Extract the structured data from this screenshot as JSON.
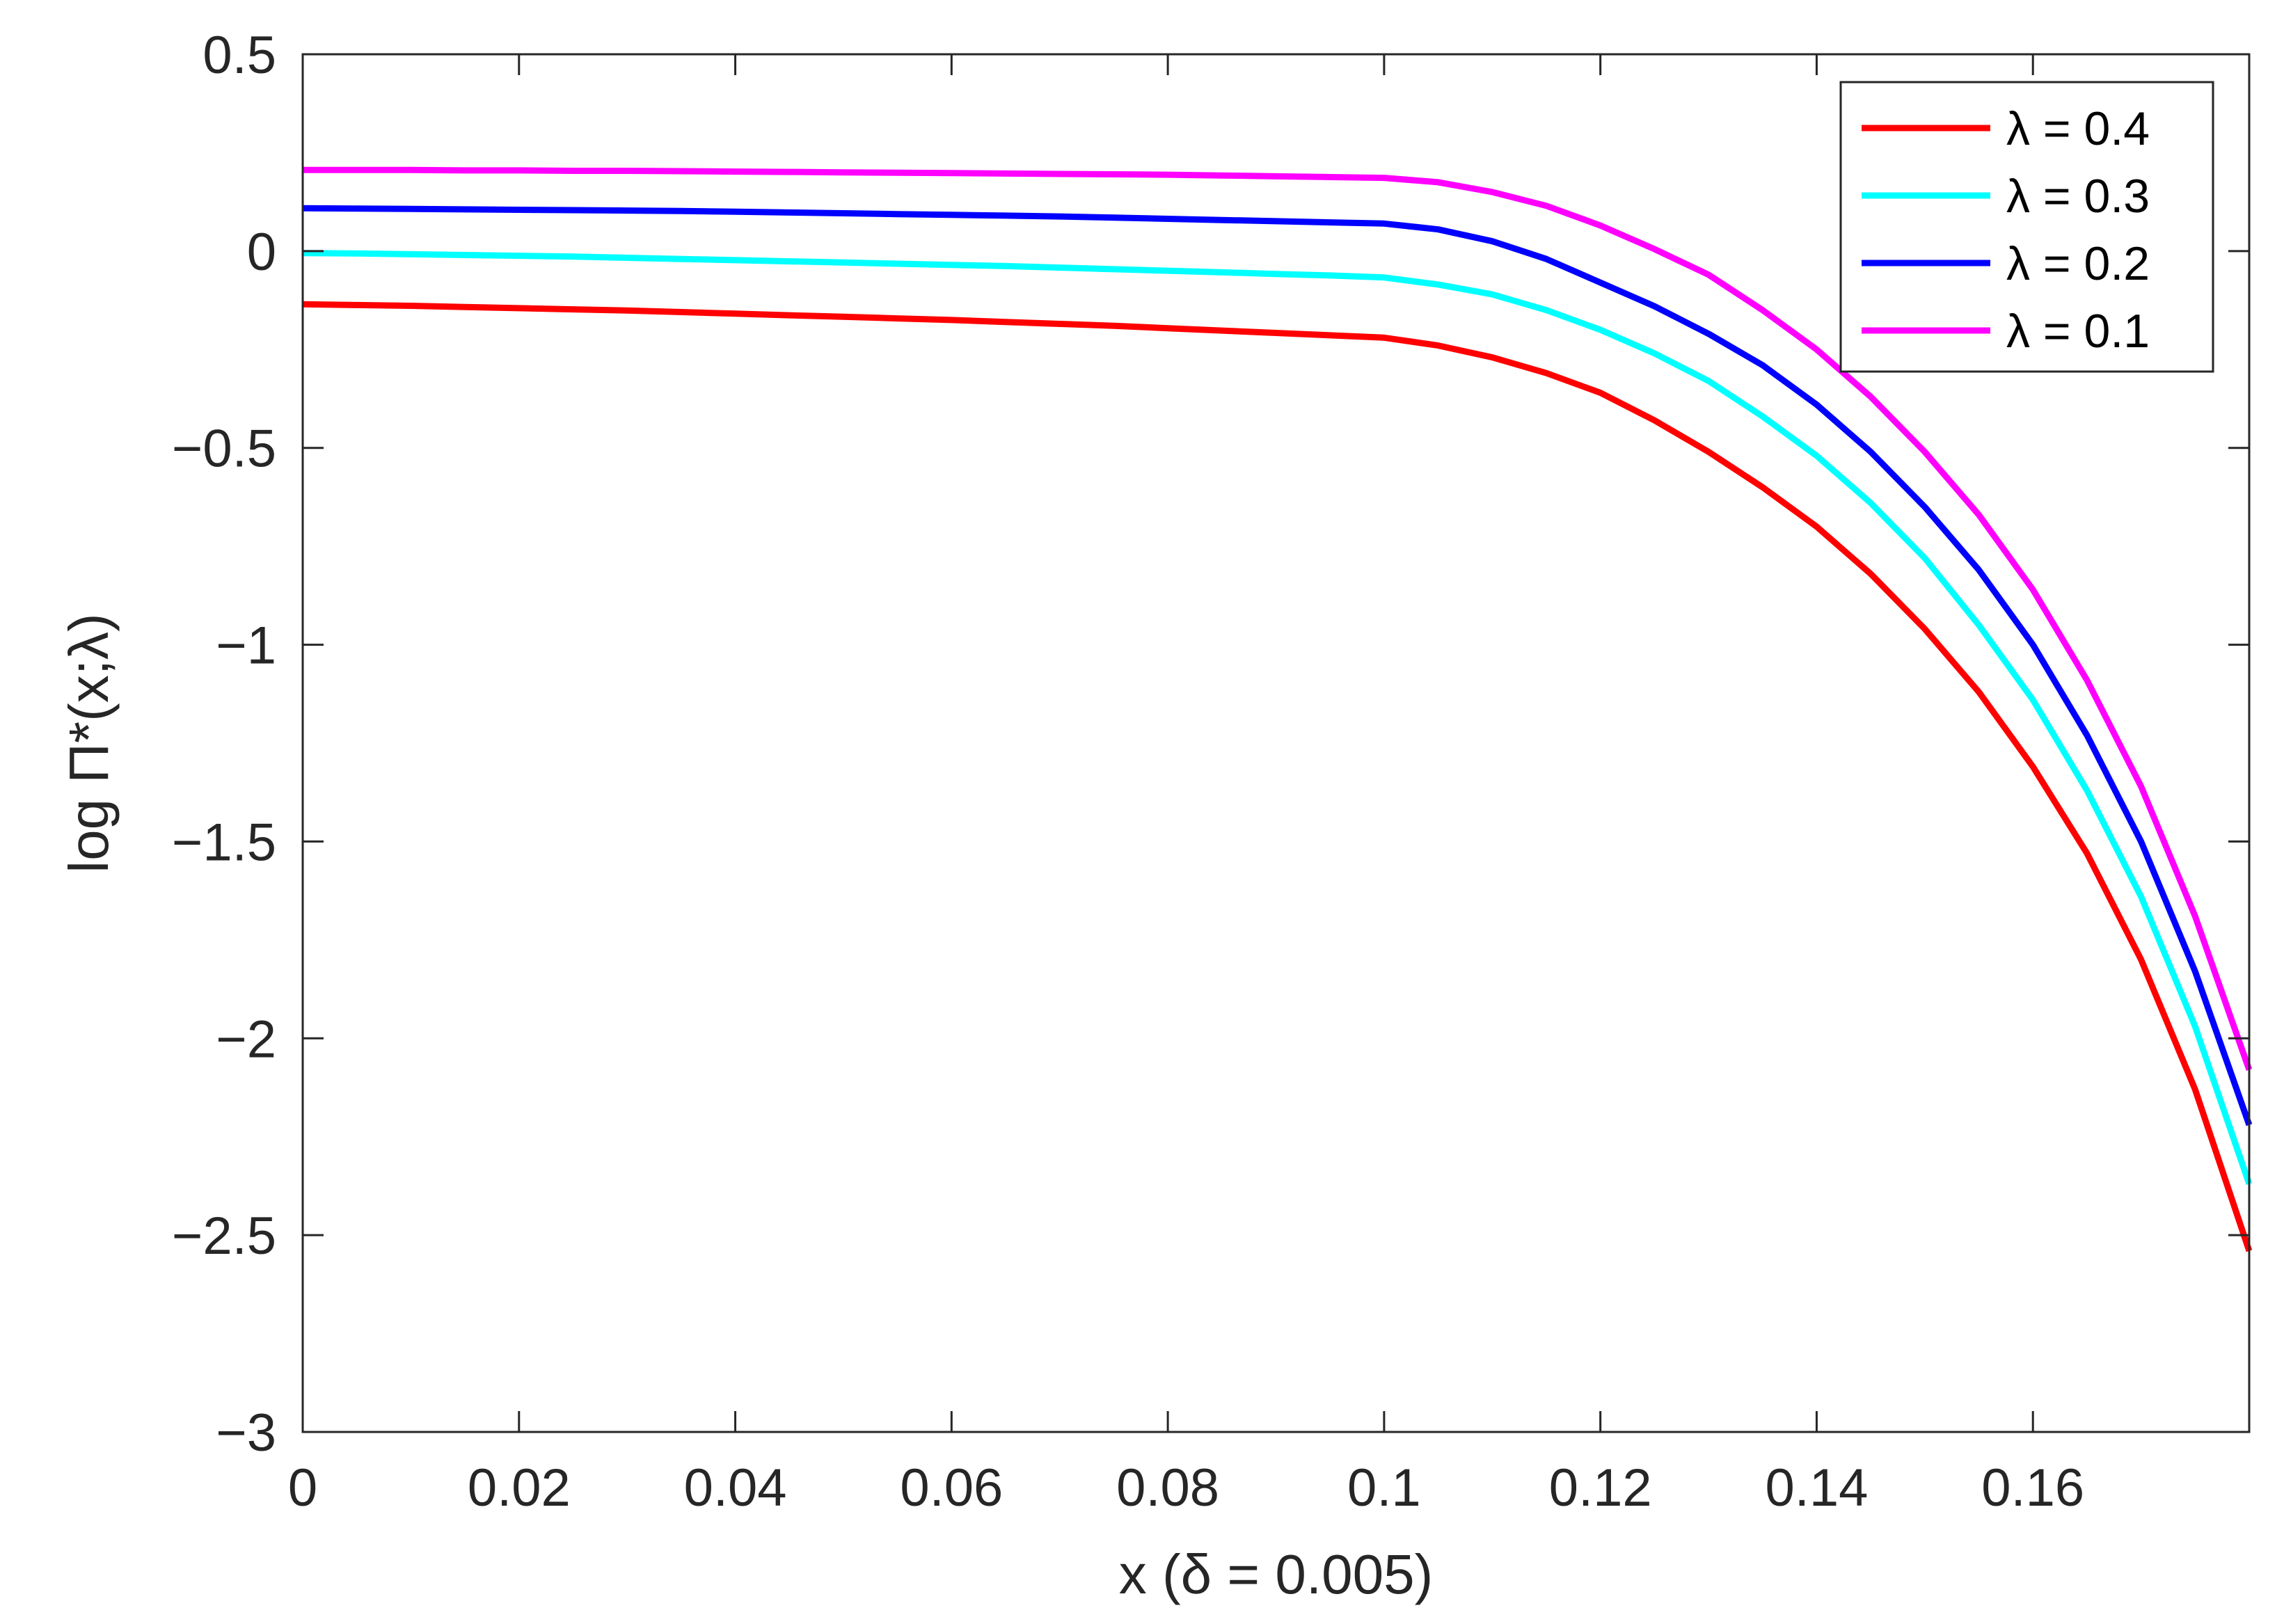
{
  "chart_data": {
    "type": "line",
    "title": "",
    "xlabel": "x (δ = 0.005)",
    "ylabel": "log Π*(x;λ)",
    "xlim": [
      0,
      0.18
    ],
    "ylim": [
      -3,
      0.5
    ],
    "xticks": [
      0,
      0.02,
      0.04,
      0.06,
      0.08,
      0.1,
      0.12,
      0.14,
      0.16
    ],
    "xtick_labels": [
      "0",
      "0.02",
      "0.04",
      "0.06",
      "0.08",
      "0.1",
      "0.12",
      "0.14",
      "0.16"
    ],
    "yticks": [
      0.5,
      0,
      -0.5,
      -1,
      -1.5,
      -2,
      -2.5,
      -3
    ],
    "ytick_labels": [
      "0.5",
      "0",
      "−0.5",
      "−1",
      "−1.5",
      "−2",
      "−2.5",
      "−3"
    ],
    "grid": false,
    "legend_position": "top-right",
    "x": [
      0,
      0.005,
      0.01,
      0.015,
      0.02,
      0.025,
      0.03,
      0.035,
      0.04,
      0.045,
      0.05,
      0.055,
      0.06,
      0.065,
      0.07,
      0.075,
      0.08,
      0.085,
      0.09,
      0.095,
      0.1,
      0.105,
      0.11,
      0.115,
      0.12,
      0.125,
      0.13,
      0.135,
      0.14,
      0.145,
      0.15,
      0.155,
      0.16,
      0.165,
      0.17,
      0.175,
      0.18
    ],
    "series": [
      {
        "name": "λ = 0.4",
        "color": "#ff0000",
        "values": [
          -0.135,
          -0.137,
          -0.139,
          -0.142,
          -0.145,
          -0.148,
          -0.151,
          -0.155,
          -0.159,
          -0.163,
          -0.167,
          -0.171,
          -0.175,
          -0.18,
          -0.185,
          -0.19,
          -0.196,
          -0.202,
          -0.208,
          -0.214,
          -0.22,
          -0.24,
          -0.27,
          -0.31,
          -0.36,
          -0.43,
          -0.51,
          -0.6,
          -0.7,
          -0.82,
          -0.96,
          -1.12,
          -1.31,
          -1.53,
          -1.8,
          -2.13,
          -2.54
        ]
      },
      {
        "name": "λ = 0.3",
        "color": "#00ffff",
        "values": [
          -0.005,
          -0.006,
          -0.008,
          -0.01,
          -0.012,
          -0.014,
          -0.017,
          -0.02,
          -0.023,
          -0.026,
          -0.029,
          -0.032,
          -0.035,
          -0.038,
          -0.042,
          -0.046,
          -0.05,
          -0.054,
          -0.058,
          -0.062,
          -0.067,
          -0.085,
          -0.11,
          -0.15,
          -0.2,
          -0.26,
          -0.33,
          -0.42,
          -0.52,
          -0.64,
          -0.78,
          -0.95,
          -1.14,
          -1.37,
          -1.64,
          -1.97,
          -2.37
        ]
      },
      {
        "name": "λ = 0.2",
        "color": "#0000ff",
        "values": [
          0.109,
          0.108,
          0.107,
          0.106,
          0.105,
          0.104,
          0.103,
          0.102,
          0.1,
          0.098,
          0.096,
          0.094,
          0.092,
          0.09,
          0.088,
          0.085,
          0.082,
          0.079,
          0.076,
          0.073,
          0.07,
          0.055,
          0.025,
          -0.02,
          -0.08,
          -0.14,
          -0.21,
          -0.29,
          -0.39,
          -0.51,
          -0.65,
          -0.81,
          -1.0,
          -1.23,
          -1.5,
          -1.83,
          -2.22
        ]
      },
      {
        "name": "λ = 0.1",
        "color": "#ff00ff",
        "values": [
          0.206,
          0.206,
          0.206,
          0.205,
          0.205,
          0.204,
          0.204,
          0.203,
          0.202,
          0.201,
          0.2,
          0.199,
          0.198,
          0.197,
          0.196,
          0.195,
          0.194,
          0.192,
          0.19,
          0.188,
          0.186,
          0.175,
          0.15,
          0.115,
          0.065,
          0.005,
          -0.06,
          -0.15,
          -0.25,
          -0.37,
          -0.51,
          -0.67,
          -0.86,
          -1.09,
          -1.36,
          -1.69,
          -2.08
        ]
      }
    ]
  }
}
